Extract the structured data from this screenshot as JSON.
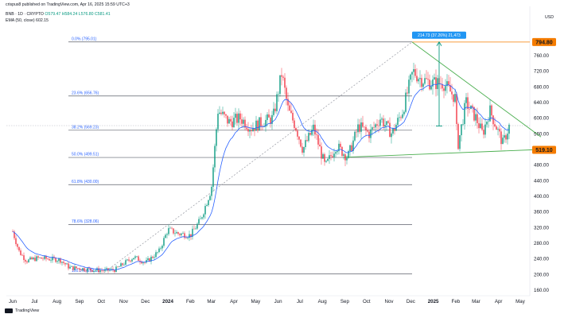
{
  "header": {
    "line1": "crispus8 published on TradingView.com, Apr 16, 2025 15:59 UTC+3",
    "symbol": "BNB · 1D · CRYPTO",
    "ohlc": "O579.47  H584.24  L576.80  C581.41",
    "ema": "EMA (50, close)  602.15",
    "currency": "USD"
  },
  "footer": {
    "brand": "TradingView"
  },
  "colors": {
    "up": "#089981",
    "down": "#f23645",
    "ema": "#2962ff",
    "fib": "#787b86",
    "wedge": "#4caf50",
    "dotted": "#9598a1",
    "res_label": "#f57c00",
    "sup_label": "#f57c00",
    "measure": "#2196f3"
  },
  "chart_data": {
    "type": "candlestick",
    "title": "BNB · 1D · CRYPTO",
    "y_axis": {
      "label": "USD",
      "ticks": [
        160,
        200,
        240,
        280,
        320,
        360,
        400,
        440,
        480,
        520,
        560,
        600,
        640,
        680,
        720,
        760
      ],
      "range": [
        140,
        808
      ]
    },
    "x_axis": {
      "ticks": [
        "Jun",
        "Jul",
        "Aug",
        "Sep",
        "Oct",
        "Nov",
        "Dec",
        "2024",
        "Feb",
        "Mar",
        "Apr",
        "May",
        "Jun",
        "Jul",
        "Aug",
        "Sep",
        "Oct",
        "Nov",
        "Dec",
        "2025",
        "Feb",
        "Mar",
        "Apr",
        "May"
      ]
    },
    "price_labels": [
      {
        "name": "resistance",
        "value": 794.8,
        "text": "794.80"
      },
      {
        "name": "support",
        "value": 519.1,
        "text": "519.10"
      }
    ],
    "fibonacci": [
      {
        "label": "0.0% (795.01)",
        "value": 795.01
      },
      {
        "label": "23.6% (656.76)",
        "value": 656.76
      },
      {
        "label": "38.2% (569.23)",
        "value": 569.23
      },
      {
        "label": "50.0% (499.51)",
        "value": 499.51
      },
      {
        "label": "61.8% (430.00)",
        "value": 430.0
      },
      {
        "label": "78.6% (328.06)",
        "value": 328.06
      },
      {
        "label": "100.0% (202.02)",
        "value": 202.02
      }
    ],
    "measure": {
      "text": "214.73 (37.26%) 21,473",
      "from": 580,
      "to": 795
    },
    "price_series": [
      [
        "2023-06-01",
        310
      ],
      [
        "2023-06-10",
        258
      ],
      [
        "2023-06-20",
        235
      ],
      [
        "2023-07-05",
        242
      ],
      [
        "2023-07-20",
        240
      ],
      [
        "2023-08-05",
        238
      ],
      [
        "2023-08-18",
        218
      ],
      [
        "2023-09-05",
        215
      ],
      [
        "2023-09-20",
        212
      ],
      [
        "2023-10-05",
        210
      ],
      [
        "2023-10-20",
        212
      ],
      [
        "2023-11-01",
        228
      ],
      [
        "2023-11-15",
        245
      ],
      [
        "2023-12-01",
        230
      ],
      [
        "2023-12-20",
        260
      ],
      [
        "2024-01-01",
        315
      ],
      [
        "2024-01-15",
        305
      ],
      [
        "2024-02-01",
        300
      ],
      [
        "2024-02-15",
        340
      ],
      [
        "2024-03-01",
        420
      ],
      [
        "2024-03-10",
        620
      ],
      [
        "2024-03-25",
        590
      ],
      [
        "2024-04-10",
        600
      ],
      [
        "2024-04-25",
        575
      ],
      [
        "2024-05-10",
        590
      ],
      [
        "2024-05-25",
        600
      ],
      [
        "2024-06-06",
        715
      ],
      [
        "2024-06-15",
        620
      ],
      [
        "2024-06-25",
        580
      ],
      [
        "2024-07-05",
        520
      ],
      [
        "2024-07-20",
        575
      ],
      [
        "2024-08-05",
        475
      ],
      [
        "2024-08-20",
        530
      ],
      [
        "2024-09-05",
        500
      ],
      [
        "2024-09-20",
        580
      ],
      [
        "2024-10-05",
        560
      ],
      [
        "2024-10-20",
        600
      ],
      [
        "2024-11-05",
        560
      ],
      [
        "2024-11-20",
        620
      ],
      [
        "2024-12-04",
        720
      ],
      [
        "2024-12-15",
        700
      ],
      [
        "2024-12-30",
        690
      ],
      [
        "2025-01-15",
        690
      ],
      [
        "2025-02-01",
        650
      ],
      [
        "2025-02-03",
        520
      ],
      [
        "2025-02-15",
        640
      ],
      [
        "2025-03-01",
        600
      ],
      [
        "2025-03-10",
        560
      ],
      [
        "2025-03-20",
        620
      ],
      [
        "2025-04-07",
        535
      ],
      [
        "2025-04-16",
        581
      ]
    ],
    "ema_name": "EMA (50, close)"
  }
}
